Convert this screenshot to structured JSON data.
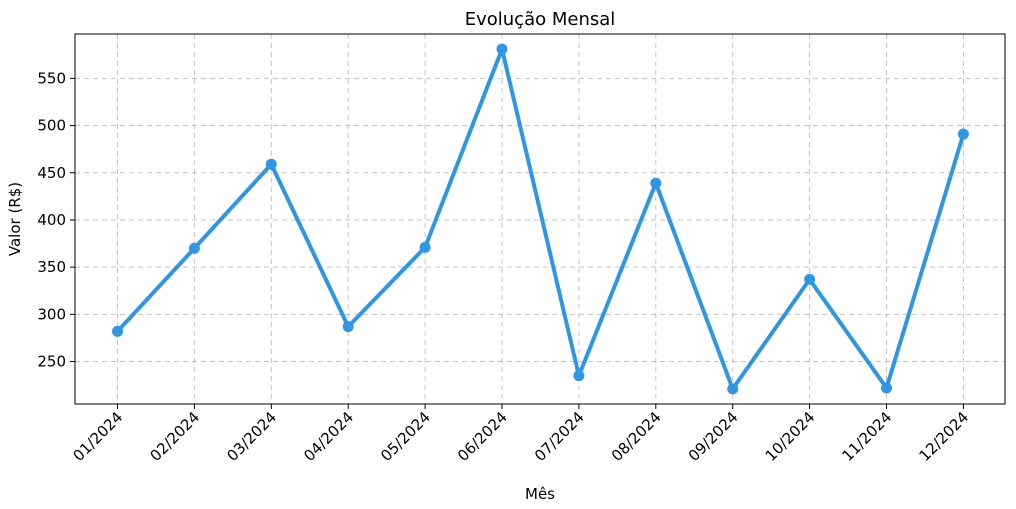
{
  "chart_data": {
    "type": "line",
    "title": "Evolução Mensal",
    "xlabel": "Mês",
    "ylabel": "Valor (R$)",
    "categories": [
      "01/2024",
      "02/2024",
      "03/2024",
      "04/2024",
      "05/2024",
      "06/2024",
      "07/2024",
      "08/2024",
      "09/2024",
      "10/2024",
      "11/2024",
      "12/2024"
    ],
    "series": [
      {
        "values": [
          282,
          370,
          459,
          287,
          371,
          581,
          235,
          439,
          221,
          337,
          222,
          491
        ]
      }
    ],
    "yticks": [
      250,
      300,
      350,
      400,
      450,
      500,
      550
    ],
    "ylim": [
      205,
      597
    ],
    "grid": true,
    "line_color": "#2e96e3"
  }
}
